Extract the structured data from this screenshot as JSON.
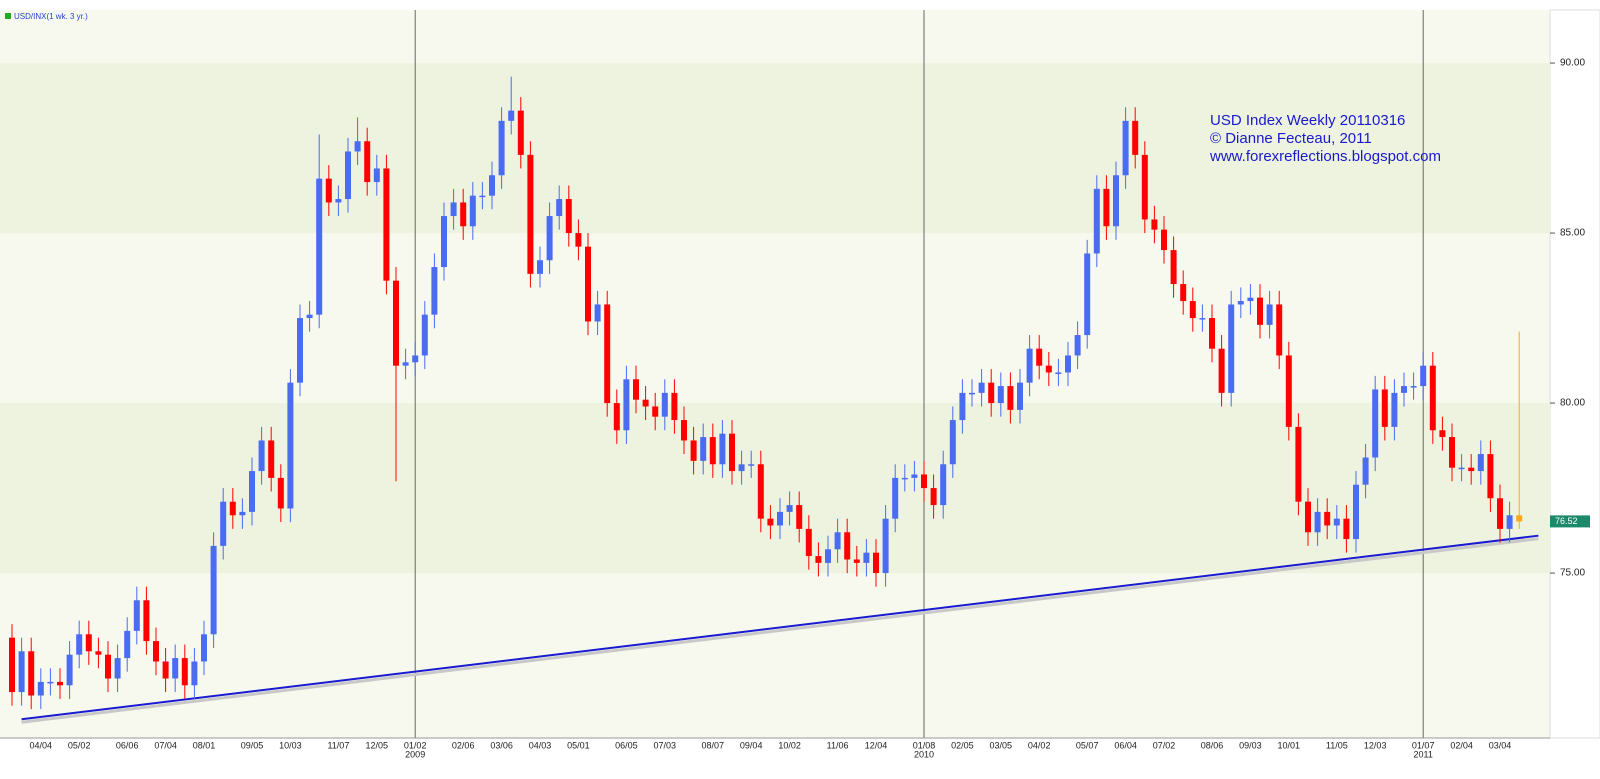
{
  "chart_data": {
    "type": "candlestick",
    "legend_label": "USD/INX(1 wk. 3 yr.)",
    "annotations": [
      "USD Index Weekly 20110316",
      "© Dianne Fecteau, 2011",
      "www.forexreflections.blogspot.com"
    ],
    "categories": [
      null,
      null,
      null,
      "04/04",
      null,
      null,
      null,
      "05/02",
      null,
      null,
      null,
      null,
      "06/06",
      null,
      null,
      null,
      "07/04",
      null,
      null,
      null,
      "08/01",
      null,
      null,
      null,
      null,
      "09/05",
      null,
      null,
      null,
      "10/03",
      null,
      null,
      null,
      null,
      "11/07",
      null,
      null,
      null,
      "12/05",
      null,
      null,
      null,
      "01/02",
      null,
      null,
      null,
      null,
      "02/06",
      null,
      null,
      null,
      "03/06",
      null,
      null,
      null,
      "04/03",
      null,
      null,
      null,
      "05/01",
      null,
      null,
      null,
      null,
      "06/05",
      null,
      null,
      null,
      "07/03",
      null,
      null,
      null,
      null,
      "08/07",
      null,
      null,
      null,
      "09/04",
      null,
      null,
      null,
      "10/02",
      null,
      null,
      null,
      null,
      "11/06",
      null,
      null,
      null,
      "12/04",
      null,
      null,
      null,
      null,
      "01/08",
      null,
      null,
      null,
      "02/05",
      null,
      null,
      null,
      "03/05",
      null,
      null,
      null,
      "04/02",
      null,
      null,
      null,
      null,
      "05/07",
      null,
      null,
      null,
      "06/04",
      null,
      null,
      null,
      "07/02",
      null,
      null,
      null,
      null,
      "08/06",
      null,
      null,
      null,
      "09/03",
      null,
      null,
      null,
      "10/01",
      null,
      null,
      null,
      null,
      "11/05",
      null,
      null,
      null,
      "12/03",
      null,
      null,
      null,
      null,
      "01/07",
      null,
      null,
      null,
      "02/04",
      null,
      null,
      null,
      "03/04",
      null,
      null
    ],
    "years": [
      null,
      null,
      null,
      null,
      null,
      null,
      null,
      null,
      null,
      null,
      null,
      null,
      null,
      null,
      null,
      null,
      null,
      null,
      null,
      null,
      null,
      null,
      null,
      null,
      null,
      null,
      null,
      null,
      null,
      null,
      null,
      null,
      null,
      null,
      null,
      null,
      null,
      null,
      null,
      null,
      null,
      null,
      "2009",
      null,
      null,
      null,
      null,
      null,
      null,
      null,
      null,
      null,
      null,
      null,
      null,
      null,
      null,
      null,
      null,
      null,
      null,
      null,
      null,
      null,
      null,
      null,
      null,
      null,
      null,
      null,
      null,
      null,
      null,
      null,
      null,
      null,
      null,
      null,
      null,
      null,
      null,
      null,
      null,
      null,
      null,
      null,
      null,
      null,
      null,
      null,
      null,
      null,
      null,
      null,
      null,
      "2010",
      null,
      null,
      null,
      null,
      null,
      null,
      null,
      null,
      null,
      null,
      null,
      null,
      null,
      null,
      null,
      null,
      null,
      null,
      null,
      null,
      null,
      null,
      null,
      null,
      null,
      null,
      null,
      null,
      null,
      null,
      null,
      null,
      null,
      null,
      null,
      null,
      null,
      null,
      null,
      null,
      null,
      null,
      null,
      null,
      null,
      null,
      null,
      null,
      null,
      null,
      null,
      "2011",
      null,
      null,
      null,
      null,
      null,
      null,
      null,
      null,
      null,
      null
    ],
    "open": [
      73.1,
      71.5,
      72.7,
      71.4,
      71.8,
      71.8,
      71.7,
      72.6,
      73.2,
      72.7,
      72.6,
      71.9,
      72.5,
      73.3,
      74.2,
      73.0,
      72.4,
      71.9,
      72.5,
      71.7,
      72.4,
      73.2,
      75.8,
      77.1,
      76.7,
      76.8,
      78.0,
      78.9,
      77.8,
      76.9,
      80.6,
      82.5,
      82.6,
      86.6,
      85.9,
      86.0,
      87.4,
      87.7,
      86.5,
      86.9,
      83.6,
      81.1,
      81.2,
      81.4,
      82.6,
      84.0,
      85.5,
      85.9,
      85.2,
      86.1,
      86.1,
      86.7,
      88.3,
      88.6,
      87.3,
      83.8,
      84.2,
      85.5,
      86.0,
      85.0,
      84.6,
      82.4,
      82.9,
      80.0,
      79.2,
      80.7,
      80.1,
      79.9,
      79.6,
      80.3,
      79.5,
      78.9,
      78.3,
      79.0,
      78.2,
      79.1,
      78.0,
      78.2,
      78.2,
      76.6,
      76.4,
      76.8,
      77.0,
      76.3,
      75.5,
      75.3,
      75.7,
      76.2,
      75.4,
      75.3,
      75.6,
      75.0,
      76.6,
      77.8,
      77.8,
      77.9,
      77.5,
      77.0,
      78.2,
      79.5,
      80.3,
      80.3,
      80.6,
      80.0,
      80.5,
      79.8,
      80.6,
      81.6,
      81.1,
      80.9,
      80.9,
      81.4,
      82.0,
      84.4,
      86.3,
      85.2,
      86.7,
      88.3,
      87.3,
      85.4,
      85.1,
      84.5,
      83.5,
      83.0,
      82.5,
      82.5,
      81.6,
      80.3,
      82.9,
      83.0,
      83.1,
      82.3,
      82.9,
      81.4,
      79.3,
      77.1,
      76.2,
      76.8,
      76.4,
      76.6,
      76.0,
      77.6,
      78.4,
      80.4,
      79.3,
      80.3,
      80.5,
      80.5,
      81.1,
      79.2,
      79.0,
      78.1,
      78.1,
      78.0,
      78.5,
      77.2,
      76.3,
      76.7
    ],
    "high": [
      73.5,
      73.1,
      73.1,
      72.2,
      72.2,
      72.2,
      73.0,
      73.6,
      73.6,
      73.1,
      73.0,
      72.9,
      73.7,
      74.6,
      74.6,
      73.4,
      72.8,
      72.9,
      72.9,
      72.8,
      73.6,
      76.2,
      77.5,
      77.5,
      77.2,
      78.4,
      79.3,
      79.3,
      78.2,
      81.0,
      82.9,
      83.0,
      87.9,
      87.0,
      86.4,
      87.8,
      88.4,
      88.1,
      87.3,
      87.3,
      84.0,
      81.6,
      81.8,
      83.0,
      84.4,
      85.9,
      86.3,
      86.3,
      86.5,
      86.5,
      87.1,
      88.7,
      89.6,
      89.0,
      87.7,
      84.6,
      85.9,
      86.4,
      86.4,
      85.4,
      85.0,
      83.3,
      83.3,
      80.4,
      81.1,
      81.1,
      80.5,
      80.3,
      80.7,
      80.7,
      79.9,
      79.3,
      79.4,
      79.4,
      79.5,
      79.5,
      78.6,
      78.6,
      78.6,
      77.0,
      77.2,
      77.4,
      77.4,
      76.7,
      75.9,
      76.1,
      76.6,
      76.6,
      75.8,
      76.0,
      76.0,
      77.0,
      78.2,
      78.2,
      78.3,
      78.3,
      77.9,
      78.6,
      79.9,
      80.7,
      80.7,
      81.0,
      81.0,
      80.9,
      80.9,
      81.0,
      82.0,
      82.0,
      81.5,
      81.3,
      81.8,
      82.4,
      84.8,
      86.7,
      86.7,
      87.1,
      88.7,
      88.7,
      87.7,
      85.8,
      85.5,
      84.9,
      83.9,
      83.4,
      82.9,
      82.9,
      82.0,
      83.3,
      83.4,
      83.5,
      83.5,
      83.3,
      83.3,
      81.8,
      79.7,
      77.5,
      77.2,
      77.2,
      77.0,
      77.0,
      78.0,
      78.8,
      80.8,
      80.8,
      80.7,
      80.9,
      80.9,
      81.5,
      81.5,
      79.6,
      79.4,
      78.5,
      78.5,
      78.9,
      78.9,
      77.6,
      77.1,
      82.1
    ],
    "low": [
      71.1,
      71.1,
      71.0,
      71.0,
      71.4,
      71.3,
      71.3,
      72.2,
      72.3,
      72.2,
      71.5,
      71.5,
      72.1,
      72.9,
      72.6,
      72.0,
      71.5,
      71.5,
      71.3,
      71.3,
      72.0,
      72.8,
      75.4,
      76.3,
      76.3,
      76.4,
      77.6,
      77.4,
      76.5,
      76.5,
      80.2,
      82.1,
      82.2,
      85.5,
      85.5,
      85.6,
      87.0,
      86.1,
      86.1,
      83.2,
      77.7,
      80.7,
      80.8,
      81.0,
      82.2,
      83.6,
      85.1,
      84.8,
      84.8,
      85.7,
      85.7,
      86.3,
      87.9,
      86.9,
      83.4,
      83.4,
      83.8,
      85.1,
      84.6,
      84.2,
      82.0,
      82.0,
      79.6,
      78.8,
      78.8,
      79.7,
      79.5,
      79.2,
      79.2,
      79.1,
      78.5,
      77.9,
      77.9,
      77.8,
      77.8,
      77.6,
      77.6,
      77.8,
      76.2,
      76.0,
      76.0,
      76.4,
      75.9,
      75.1,
      74.9,
      74.9,
      75.3,
      75.0,
      74.9,
      74.9,
      74.6,
      74.6,
      76.2,
      77.4,
      77.4,
      77.1,
      76.6,
      76.6,
      77.8,
      79.1,
      79.9,
      79.9,
      79.6,
      79.6,
      79.4,
      79.4,
      80.2,
      80.7,
      80.5,
      80.5,
      80.5,
      81.0,
      81.6,
      84.0,
      84.8,
      84.8,
      86.3,
      86.9,
      85.0,
      84.7,
      84.1,
      83.1,
      82.6,
      82.1,
      82.1,
      81.2,
      79.9,
      79.9,
      82.5,
      82.6,
      81.9,
      81.9,
      81.0,
      78.9,
      76.7,
      75.8,
      75.8,
      76.0,
      76.0,
      75.6,
      75.6,
      77.2,
      78.0,
      78.9,
      78.9,
      79.9,
      80.1,
      80.1,
      78.8,
      78.6,
      77.7,
      77.7,
      77.6,
      77.6,
      76.8,
      75.9,
      75.9,
      76.3
    ],
    "close": [
      71.5,
      72.7,
      71.4,
      71.8,
      71.8,
      71.7,
      72.6,
      73.2,
      72.7,
      72.6,
      71.9,
      72.5,
      73.3,
      74.2,
      73.0,
      72.4,
      71.9,
      72.5,
      71.7,
      72.4,
      73.2,
      75.8,
      77.1,
      76.7,
      76.8,
      78.0,
      78.9,
      77.8,
      76.9,
      80.6,
      82.5,
      82.6,
      86.6,
      85.9,
      86.0,
      87.4,
      87.7,
      86.5,
      86.9,
      83.6,
      81.1,
      81.2,
      81.4,
      82.6,
      84.0,
      85.5,
      85.9,
      85.2,
      86.1,
      86.1,
      86.7,
      88.3,
      88.6,
      87.3,
      83.8,
      84.2,
      85.5,
      86.0,
      85.0,
      84.6,
      82.4,
      82.9,
      80.0,
      79.2,
      80.7,
      80.1,
      79.9,
      79.6,
      80.3,
      79.5,
      78.9,
      78.3,
      79.0,
      78.2,
      79.1,
      78.0,
      78.2,
      78.2,
      76.6,
      76.4,
      76.8,
      77.0,
      76.3,
      75.5,
      75.3,
      75.7,
      76.2,
      75.4,
      75.3,
      75.6,
      75.0,
      76.6,
      77.8,
      77.8,
      77.9,
      77.5,
      77.0,
      78.2,
      79.5,
      80.3,
      80.3,
      80.6,
      80.0,
      80.5,
      79.8,
      80.6,
      81.6,
      81.1,
      80.9,
      80.9,
      81.4,
      82.0,
      84.4,
      86.3,
      85.2,
      86.7,
      88.3,
      87.3,
      85.4,
      85.1,
      84.5,
      83.5,
      83.0,
      82.5,
      82.5,
      81.6,
      80.3,
      82.9,
      83.0,
      83.1,
      82.3,
      82.9,
      81.4,
      79.3,
      77.1,
      76.2,
      76.8,
      76.4,
      76.6,
      76.0,
      77.6,
      78.4,
      80.4,
      79.3,
      80.3,
      80.5,
      80.5,
      81.1,
      79.2,
      79.0,
      78.1,
      78.1,
      78.0,
      78.5,
      77.2,
      76.3,
      76.7,
      76.52
    ],
    "last_value_label": "76.52",
    "up_color": "#4a6cf0",
    "down_color": "#ff0000",
    "last_color": "#ffa520",
    "trendline": {
      "x": [
        1,
        159
      ],
      "y": [
        70.7,
        76.1
      ],
      "color": "#1a1ad0"
    },
    "ylim": [
      70.15,
      91.56
    ],
    "yticks": [
      {
        "value": 75,
        "label": "75.00"
      },
      {
        "value": 80,
        "label": "80.00"
      },
      {
        "value": 85,
        "label": "85.00"
      },
      {
        "value": 90,
        "label": "90.00"
      }
    ],
    "grid": true
  }
}
